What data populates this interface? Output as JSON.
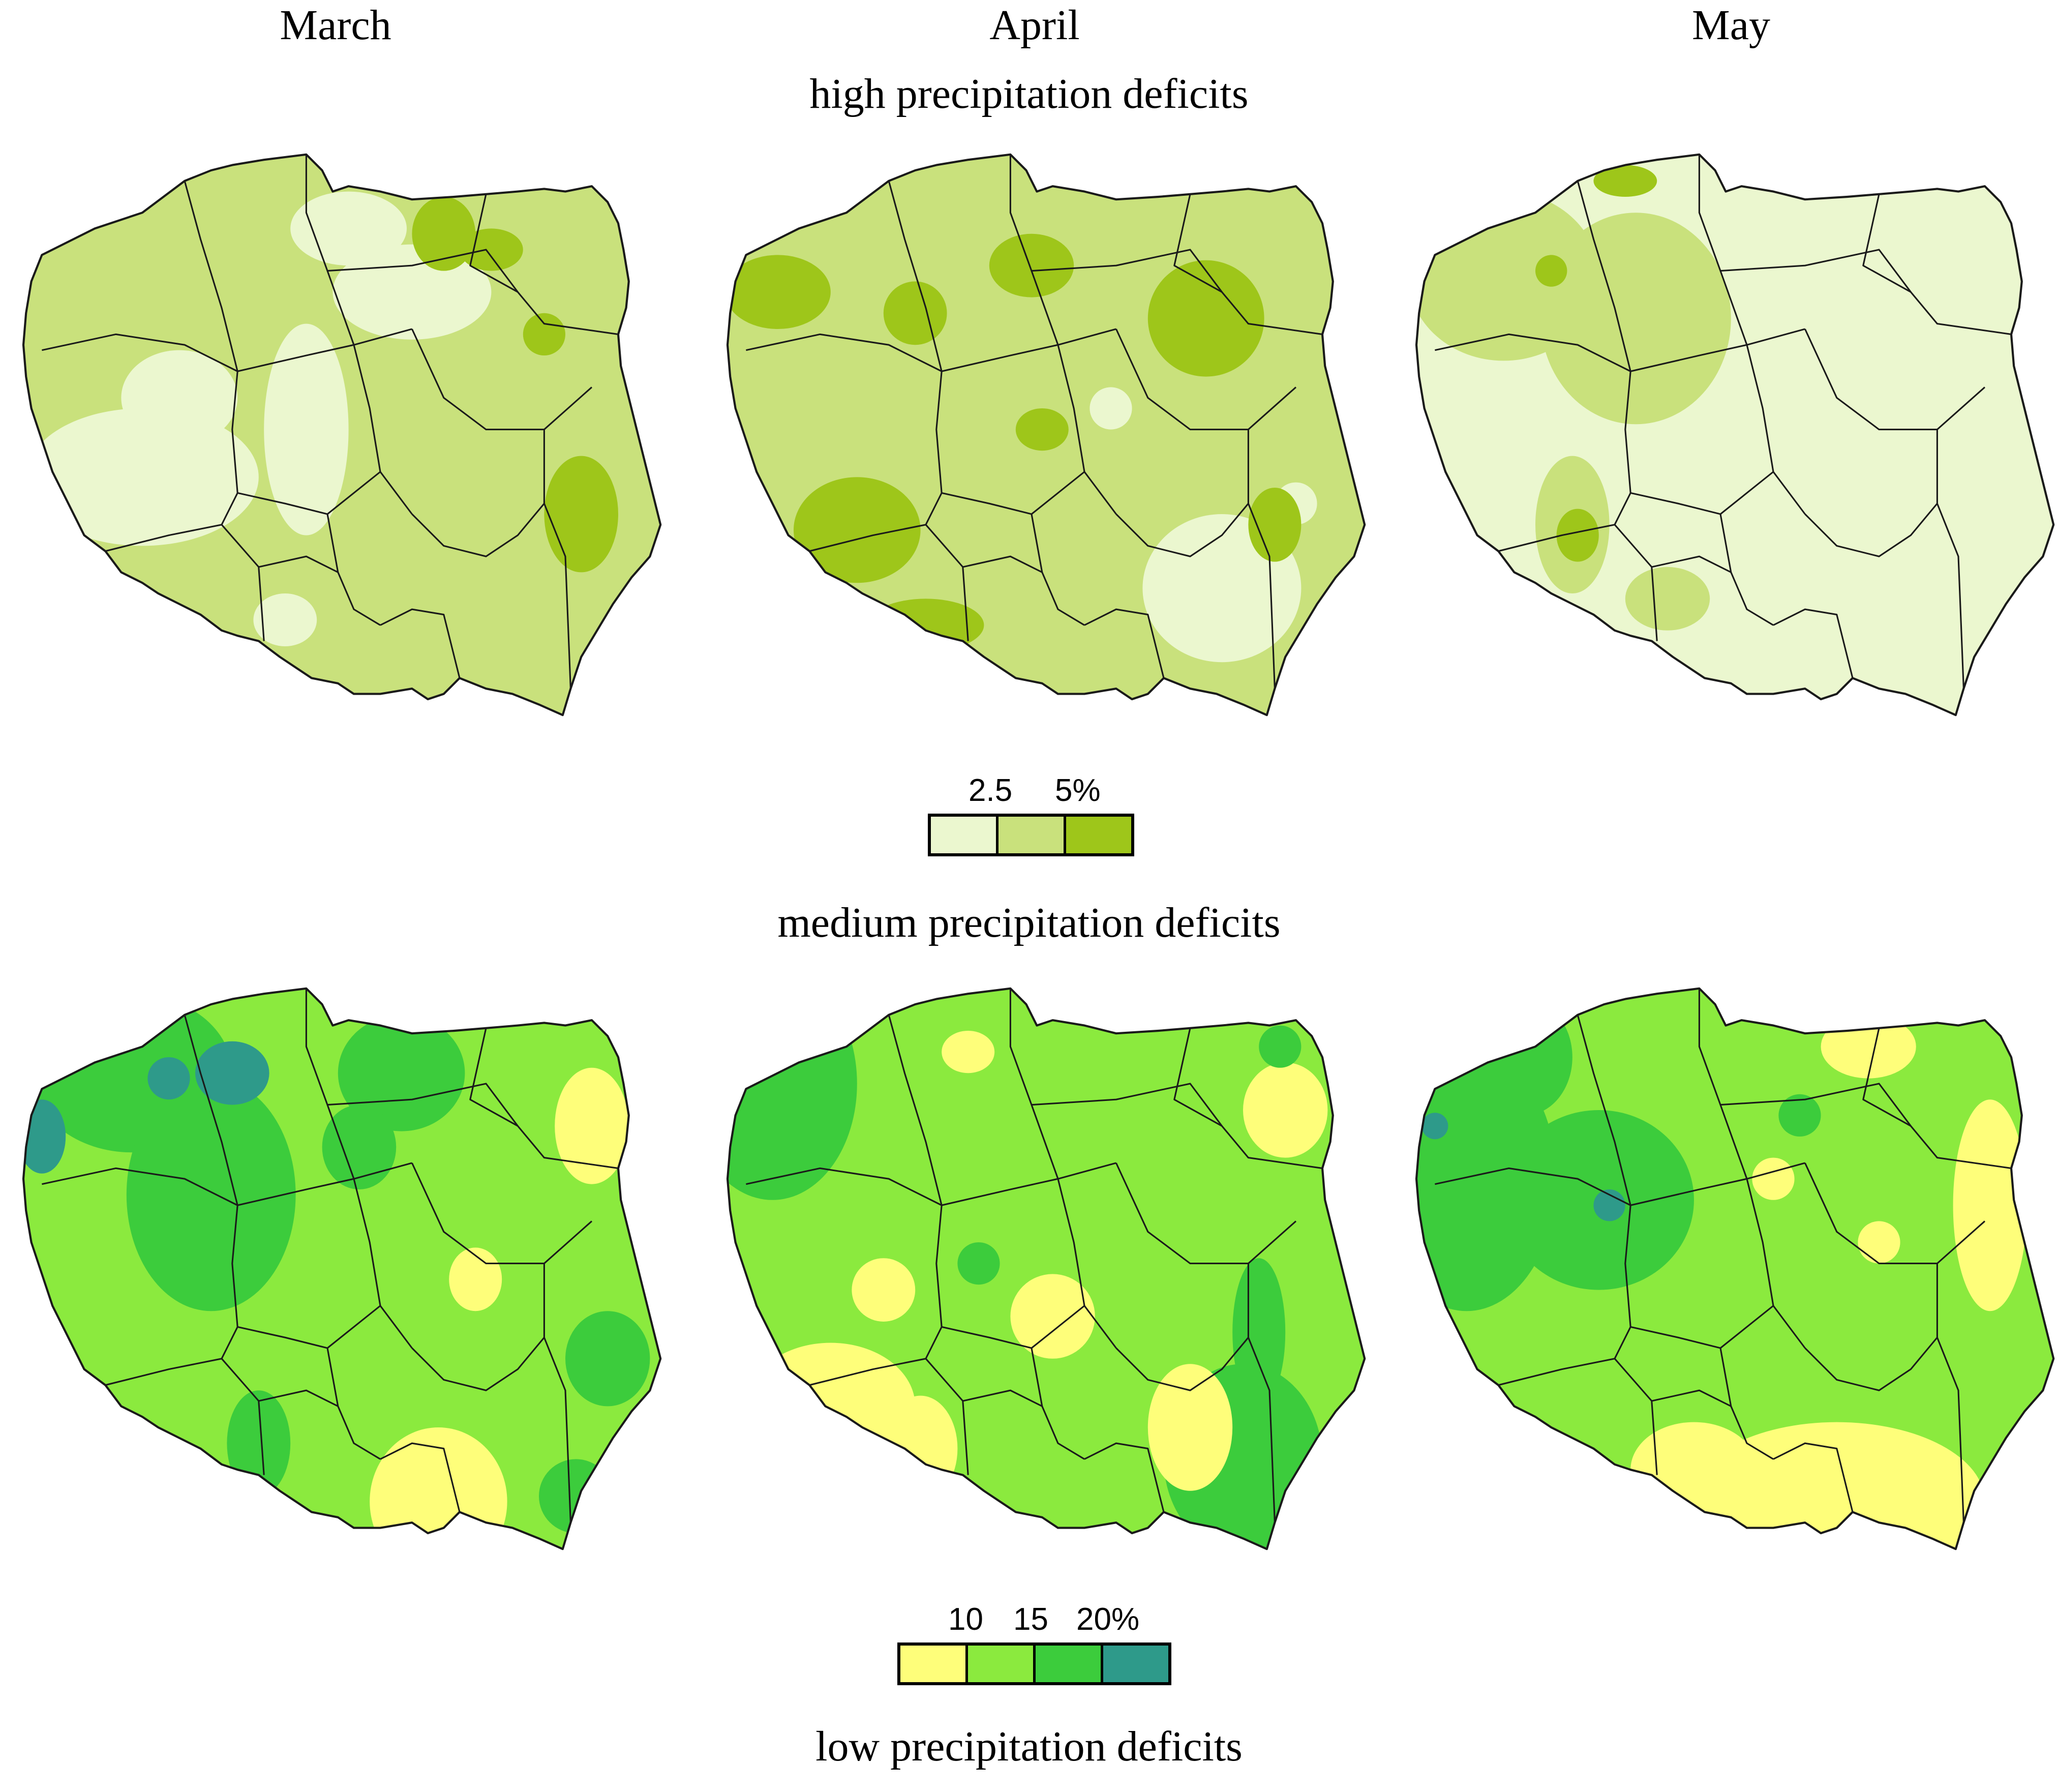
{
  "months": [
    "March",
    "April",
    "May"
  ],
  "panels": {
    "high": {
      "title": "high precipitation deficits",
      "legend": {
        "labels": [
          "2.5",
          "5%"
        ],
        "colors": [
          "#ebf7cf",
          "#c9e17c",
          "#9ec61a"
        ]
      }
    },
    "medium": {
      "title": "medium precipitation deficits",
      "legend": {
        "labels": [
          "10",
          "15",
          "20%"
        ],
        "colors": [
          "#fefe7a",
          "#8bea3e",
          "#3ccc3c",
          "#2e9a8a"
        ]
      }
    },
    "low": {
      "title": "low precipitation deficits"
    }
  },
  "map_style": {
    "border_color": "#1a1a1a"
  }
}
